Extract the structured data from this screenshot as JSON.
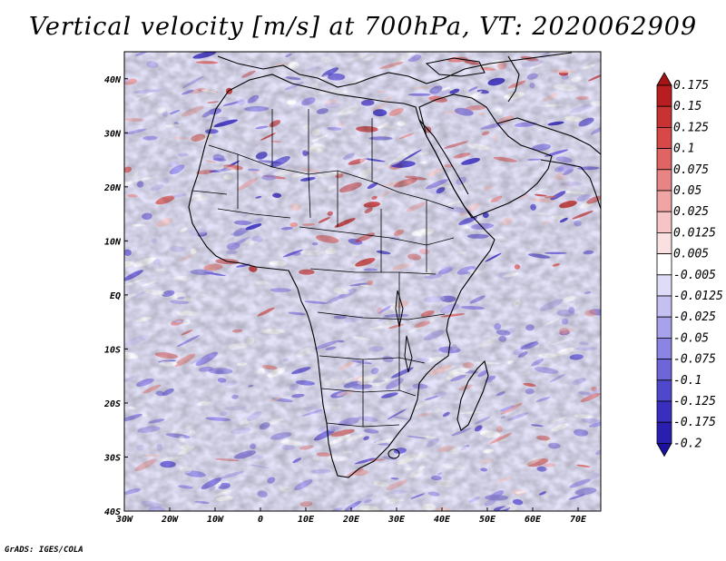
{
  "title": "Vertical velocity [m/s] at 700hPa, VT: 2020062909",
  "credit": "GrADS: IGES/COLA",
  "map": {
    "lon_range": [
      -30,
      75
    ],
    "lat_range": [
      -40,
      45
    ],
    "lon_ticks": [
      {
        "value": -30,
        "label": "30W"
      },
      {
        "value": -20,
        "label": "20W"
      },
      {
        "value": -10,
        "label": "10W"
      },
      {
        "value": 0,
        "label": "0"
      },
      {
        "value": 10,
        "label": "10E"
      },
      {
        "value": 20,
        "label": "20E"
      },
      {
        "value": 30,
        "label": "30E"
      },
      {
        "value": 40,
        "label": "40E"
      },
      {
        "value": 50,
        "label": "50E"
      },
      {
        "value": 60,
        "label": "60E"
      },
      {
        "value": 70,
        "label": "70E"
      }
    ],
    "lat_ticks": [
      {
        "value": 40,
        "label": "40N"
      },
      {
        "value": 30,
        "label": "30N"
      },
      {
        "value": 20,
        "label": "20N"
      },
      {
        "value": 10,
        "label": "10N"
      },
      {
        "value": 0,
        "label": "EQ"
      },
      {
        "value": -10,
        "label": "10S"
      },
      {
        "value": -20,
        "label": "20S"
      },
      {
        "value": -30,
        "label": "30S"
      },
      {
        "value": -40,
        "label": "40S"
      }
    ],
    "field_colors": [
      "#3a2ec8",
      "#6a5ee0",
      "#9a90ee",
      "#c4bff6",
      "#ffffff",
      "#f6cccc",
      "#ee9a9a",
      "#e06a6a",
      "#c83434"
    ]
  },
  "colorbar": {
    "levels": [
      "0.175",
      "0.15",
      "0.125",
      "0.1",
      "0.075",
      "0.05",
      "0.025",
      "0.0125",
      "0.005",
      "-0.005",
      "-0.0125",
      "-0.025",
      "-0.05",
      "-0.075",
      "-0.1",
      "-0.125",
      "-0.175",
      "-0.2"
    ],
    "colors": [
      "#a61416",
      "#b81e1f",
      "#c83232",
      "#d84848",
      "#e06464",
      "#e88484",
      "#f0a4a4",
      "#f6c4c4",
      "#fae0e0",
      "#ffffff",
      "#dedcf6",
      "#c4c0f2",
      "#a8a2ea",
      "#8c84e2",
      "#6e66d8",
      "#5048cc",
      "#3a2ec0",
      "#2a1eb0",
      "#1c10a0"
    ]
  }
}
